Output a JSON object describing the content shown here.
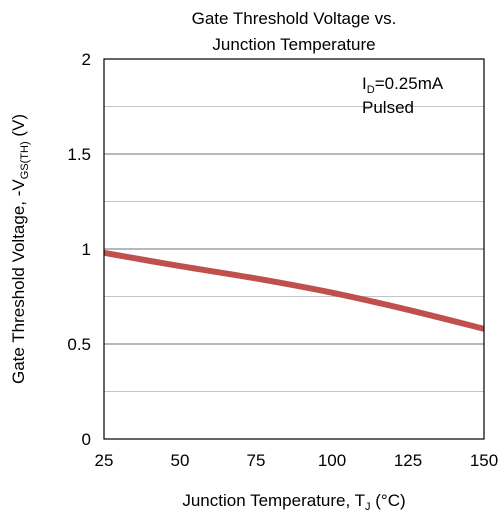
{
  "chart_data": {
    "type": "line",
    "title_lines": [
      "Gate Threshold  Voltage vs.",
      "Junction Temperature"
    ],
    "xlabel": {
      "main": "Junction Temperature, T",
      "sub": "J",
      "tail": " (°C)"
    },
    "ylabel": {
      "main": "Gate Threshold  Voltage, -V",
      "sub": "GS(TH)",
      "tail": " (V)"
    },
    "xlim": [
      25,
      150
    ],
    "ylim": [
      0,
      2
    ],
    "x_ticks": [
      25,
      50,
      75,
      100,
      125,
      150
    ],
    "x_tick_labels": [
      "25",
      "50",
      "75",
      "100",
      "125",
      "150"
    ],
    "y_ticks": [
      0,
      0.5,
      1,
      1.5,
      2
    ],
    "y_tick_labels": [
      "0",
      "0.5",
      "1",
      "1.5",
      "2"
    ],
    "y_minor_grid": [
      0.25,
      0.75,
      1.25,
      1.75
    ],
    "grid": true,
    "annotation": {
      "line1_main": "I",
      "line1_sub": "D",
      "line1_tail": "=0.25mA",
      "line2": "Pulsed"
    },
    "series": [
      {
        "color": "#c0504d",
        "x": [
          25,
          50,
          75,
          100,
          125,
          150
        ],
        "y": [
          0.98,
          0.91,
          0.845,
          0.77,
          0.68,
          0.58
        ]
      }
    ]
  }
}
